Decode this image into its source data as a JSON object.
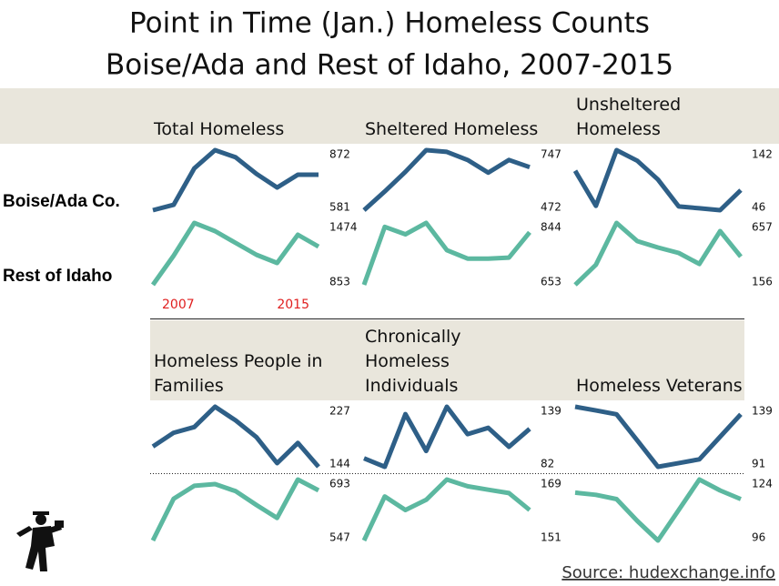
{
  "title": "Point in Time (Jan.) Homeless Counts",
  "subtitle": "Boise/Ada and Rest of Idaho, 2007-2015",
  "row_labels": [
    "Boise/Ada Co.",
    "Rest of Idaho"
  ],
  "source": "Source: hudexchange.info",
  "chart_data": [
    {
      "type": "line",
      "title": "Total Homeless",
      "x": [
        2007,
        2008,
        2009,
        2010,
        2011,
        2012,
        2013,
        2014,
        2015
      ],
      "xticks": [
        2007,
        2015
      ],
      "series": [
        {
          "color": "#2e5f87",
          "values": [
            581,
            607,
            784,
            872,
            837,
            757,
            691,
            753,
            753
          ],
          "ylim": [
            581,
            872
          ],
          "yticks": [
            581,
            872
          ]
        },
        {
          "color": "#5cb8a0",
          "values": [
            853,
            1145,
            1474,
            1392,
            1273,
            1154,
            1072,
            1355,
            1237
          ],
          "ylim": [
            853,
            1474
          ],
          "yticks": [
            853,
            1474
          ]
        }
      ]
    },
    {
      "type": "line",
      "title": "Sheltered Homeless",
      "x": [
        2007,
        2008,
        2009,
        2010,
        2011,
        2012,
        2013,
        2014,
        2015
      ],
      "series": [
        {
          "color": "#2e5f87",
          "values": [
            472,
            558,
            648,
            747,
            739,
            702,
            644,
            702,
            669
          ],
          "ylim": [
            472,
            747
          ],
          "yticks": [
            472,
            747
          ]
        },
        {
          "color": "#5cb8a0",
          "values": [
            653,
            832,
            809,
            844,
            760,
            734,
            734,
            737,
            815
          ],
          "ylim": [
            653,
            844
          ],
          "yticks": [
            653,
            844
          ]
        }
      ]
    },
    {
      "type": "line",
      "title": "Unsheltered Homeless",
      "x": [
        2007,
        2008,
        2009,
        2010,
        2011,
        2012,
        2013,
        2014,
        2015
      ],
      "series": [
        {
          "color": "#2e5f87",
          "values": [
            109,
            53,
            142,
            125,
            95,
            52,
            49,
            46,
            78
          ],
          "ylim": [
            46,
            142
          ],
          "yticks": [
            46,
            142
          ]
        },
        {
          "color": "#5cb8a0",
          "values": [
            156,
            318,
            657,
            510,
            458,
            414,
            325,
            591,
            384
          ],
          "ylim": [
            156,
            657
          ],
          "yticks": [
            156,
            657
          ]
        }
      ]
    },
    {
      "type": "line",
      "title": "Homeless People in Families",
      "x": [
        2007,
        2008,
        2009,
        2010,
        2011,
        2012,
        2013,
        2014,
        2015
      ],
      "series": [
        {
          "color": "#2e5f87",
          "values": [
            172,
            191,
            199,
            227,
            208,
            185,
            149,
            177,
            144
          ],
          "ylim": [
            144,
            227
          ],
          "yticks": [
            144,
            227
          ]
        },
        {
          "color": "#5cb8a0",
          "values": [
            547,
            647,
            678,
            682,
            665,
            632,
            601,
            693,
            667
          ],
          "ylim": [
            547,
            693
          ],
          "yticks": [
            547,
            693
          ]
        }
      ]
    },
    {
      "type": "line",
      "title": "Chronically Homeless Individuals",
      "x": [
        2007,
        2008,
        2009,
        2010,
        2011,
        2012,
        2013,
        2014,
        2015
      ],
      "series": [
        {
          "color": "#2e5f87",
          "values": [
            90,
            82,
            132,
            97,
            139,
            113,
            119,
            101,
            118
          ],
          "ylim": [
            82,
            139
          ],
          "yticks": [
            82,
            139
          ]
        },
        {
          "color": "#5cb8a0",
          "values": [
            151,
            164,
            160,
            163,
            169,
            167,
            166,
            165,
            160
          ],
          "ylim": [
            151,
            169
          ],
          "yticks": [
            151,
            169
          ]
        }
      ]
    },
    {
      "type": "line",
      "title": "Homeless Veterans",
      "x": [
        2007,
        2008,
        2009,
        2010,
        2011,
        2012,
        2013,
        2014,
        2015
      ],
      "series": [
        {
          "color": "#2e5f87",
          "values": [
            139,
            136,
            133,
            112,
            91,
            94,
            97,
            115,
            133
          ],
          "ylim": [
            91,
            139
          ],
          "yticks": [
            91,
            139
          ]
        },
        {
          "color": "#5cb8a0",
          "values": [
            118,
            117,
            115,
            105,
            96,
            110,
            124,
            119,
            115
          ],
          "ylim": [
            96,
            124
          ],
          "yticks": [
            96,
            124
          ]
        }
      ]
    }
  ]
}
